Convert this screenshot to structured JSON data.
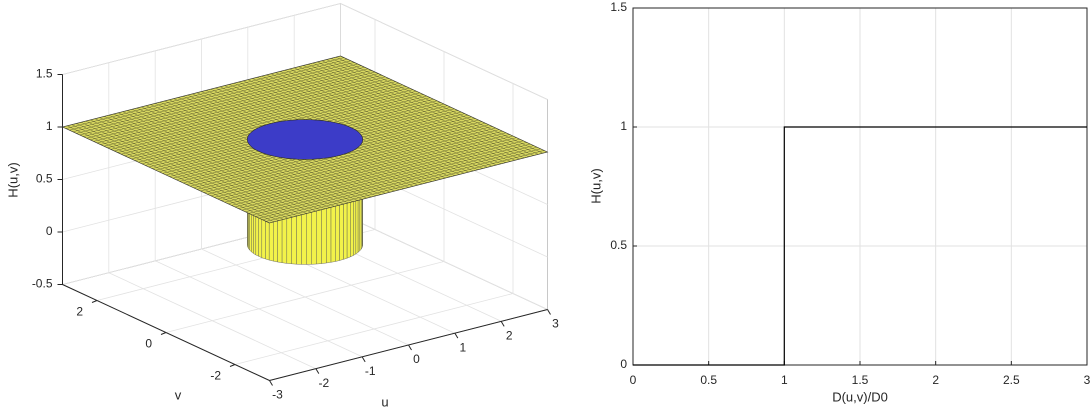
{
  "chart_data": [
    {
      "type": "surface",
      "xlabel": "u",
      "ylabel": "v",
      "zlabel": "H(u,v)",
      "radius": 1,
      "values": [
        0,
        1
      ],
      "color": "#d8d860",
      "side_color": "#f2f24a",
      "inner_color": "#3c3cc8",
      "xlim": [
        -3,
        3
      ],
      "ylim": [
        -3,
        3
      ],
      "zlim": [
        -0.5,
        1.5
      ],
      "xticks": [
        -3,
        -2,
        -1,
        0,
        1,
        2,
        3
      ],
      "yticks": [
        -2,
        0,
        2
      ],
      "zticks": [
        -0.5,
        0,
        0.5,
        1,
        1.5
      ],
      "grid": true
    },
    {
      "type": "line",
      "xlabel": "D(u,v)/D0",
      "ylabel": "H(u,v)",
      "x": [
        0,
        1,
        1,
        3
      ],
      "values": [
        0,
        0,
        1,
        1
      ],
      "color": "#000000",
      "xlim": [
        0,
        3
      ],
      "ylim": [
        0,
        1.5
      ],
      "xticks": [
        0,
        0.5,
        1,
        1.5,
        2,
        2.5,
        3
      ],
      "yticks": [
        0,
        0.5,
        1,
        1.5
      ],
      "grid": true
    }
  ]
}
